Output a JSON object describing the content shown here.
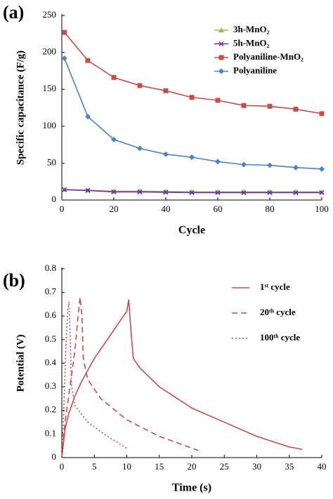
{
  "chart_data": [
    {
      "type": "line",
      "title": "(a)",
      "x_label": "Cycle",
      "y_label": "Specific capacitance  (F/g)",
      "x": [
        1,
        10,
        20,
        30,
        40,
        50,
        60,
        70,
        80,
        90,
        100
      ],
      "series": [
        {
          "name": "3h-MnO₂",
          "color": "#9bbb59",
          "marker": "triangle",
          "values": [
            14,
            13,
            12,
            12,
            11.5,
            11,
            11,
            11,
            11,
            11,
            11
          ]
        },
        {
          "name": "5h-MnO₂",
          "color": "#7030a0",
          "marker": "cross",
          "values": [
            14,
            13,
            11,
            11,
            10.5,
            10,
            10,
            10,
            10,
            10,
            10
          ]
        },
        {
          "name": "Polyaniline-MnO₂",
          "color": "#c0504d",
          "marker": "square",
          "values": [
            227,
            189,
            166,
            155,
            148,
            139,
            135,
            128,
            127,
            123,
            117
          ]
        },
        {
          "name": "Polyaniline",
          "color": "#4f81bd",
          "marker": "diamond",
          "values": [
            192,
            113,
            82,
            70,
            62,
            58,
            52,
            48,
            47,
            44,
            42
          ]
        }
      ],
      "xlim": [
        0,
        100
      ],
      "xticks": [
        0,
        20,
        40,
        60,
        80,
        100
      ],
      "ylim": [
        0,
        250
      ],
      "yticks": [
        0,
        50,
        100,
        150,
        200,
        250
      ],
      "legend": "upper right"
    },
    {
      "type": "line",
      "title": "(b)",
      "x_label": "Time (s)",
      "y_label": "Potential (V)",
      "series": [
        {
          "name": "1ˢᵗ   cycle",
          "color": "#c0504d",
          "style": "solid",
          "x": [
            0,
            0.5,
            1,
            2,
            3,
            5,
            7,
            9,
            10,
            10.3,
            10.6,
            11,
            12,
            15,
            20,
            25,
            30,
            35,
            37
          ],
          "y": [
            0,
            0.12,
            0.18,
            0.26,
            0.32,
            0.42,
            0.5,
            0.58,
            0.62,
            0.67,
            0.55,
            0.42,
            0.38,
            0.3,
            0.21,
            0.15,
            0.09,
            0.045,
            0.035
          ]
        },
        {
          "name": "20ᵗʰ  cycle",
          "color": "#c0504d",
          "style": "dashed",
          "x": [
            0,
            0.5,
            1,
            1.5,
            2,
            2.5,
            2.8,
            3.1,
            3.3,
            4,
            6,
            10,
            15,
            21
          ],
          "y": [
            0,
            0.15,
            0.25,
            0.35,
            0.45,
            0.6,
            0.68,
            0.6,
            0.42,
            0.33,
            0.25,
            0.16,
            0.09,
            0.03
          ]
        },
        {
          "name": "100ᵗʰ  cycle",
          "color": "#c0504d",
          "style": "dotted",
          "x": [
            0,
            0.3,
            0.6,
            0.9,
            1.1,
            1.3,
            1.5,
            2,
            4,
            7,
            10
          ],
          "y": [
            0,
            0.2,
            0.45,
            0.62,
            0.66,
            0.5,
            0.3,
            0.22,
            0.15,
            0.09,
            0.04
          ]
        }
      ],
      "xlim": [
        0,
        40
      ],
      "xticks": [
        0,
        5,
        10,
        15,
        20,
        25,
        30,
        35,
        40
      ],
      "ylim": [
        0,
        0.8
      ],
      "yticks": [
        0,
        0.1,
        0.2,
        0.3,
        0.4,
        0.5,
        0.6,
        0.7,
        0.8
      ],
      "legend": "upper right"
    }
  ]
}
